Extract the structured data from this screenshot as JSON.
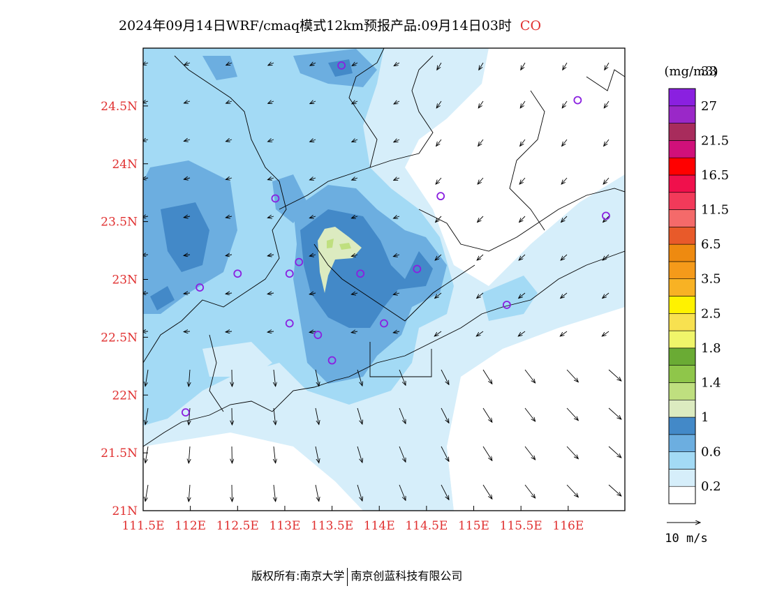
{
  "title": {
    "text": "2024年09月14日WRF/cmaq模式12km预报产品:09月14日03时",
    "species": "CO",
    "species_color": "#e03030"
  },
  "map": {
    "lon_labels": [
      "111.5E",
      "112E",
      "112.5E",
      "113E",
      "113.5E",
      "114E",
      "114.5E",
      "115E",
      "115.5E",
      "116E"
    ],
    "lat_labels": [
      "21N",
      "21.5N",
      "22N",
      "22.5N",
      "23N",
      "23.5N",
      "24N",
      "24.5N"
    ],
    "label_color": "#e03030",
    "lon_range": [
      111.5,
      116.6
    ],
    "lat_range": [
      21.0,
      25.0
    ]
  },
  "legend": {
    "unit": "(mg/m3)",
    "colors": [
      "#ffffff",
      "#d6eefa",
      "#a3daf5",
      "#6caee0",
      "#4389c8",
      "#dcebc0",
      "#bfdf7f",
      "#8fc64a",
      "#6aab34",
      "#f0f56a",
      "#f8e150",
      "#fff200",
      "#f8b224",
      "#f59a1a",
      "#ee8a10",
      "#e85a2a",
      "#f46a6a",
      "#f23a5a",
      "#f0104c",
      "#ff0000",
      "#d0107a",
      "#a82c5c",
      "#9a28c8",
      "#8a20e0"
    ],
    "labels": [
      "0.2",
      "0.6",
      "1",
      "1.4",
      "1.8",
      "2.5",
      "3.5",
      "6.5",
      "11.5",
      "16.5",
      "21.5",
      "27",
      "33"
    ],
    "wind_ref": "10 m/s"
  },
  "footer": {
    "left": "版权所有:南京大学",
    "right": "南京创蓝科技有限公司"
  },
  "sites": [
    {
      "lon": 113.6,
      "lat": 24.85
    },
    {
      "lon": 116.1,
      "lat": 24.55
    },
    {
      "lon": 112.9,
      "lat": 23.7
    },
    {
      "lon": 114.65,
      "lat": 23.72
    },
    {
      "lon": 116.4,
      "lat": 23.55
    },
    {
      "lon": 113.15,
      "lat": 23.15
    },
    {
      "lon": 112.5,
      "lat": 23.05
    },
    {
      "lon": 113.05,
      "lat": 23.05
    },
    {
      "lon": 113.8,
      "lat": 23.05
    },
    {
      "lon": 114.4,
      "lat": 23.09
    },
    {
      "lon": 112.1,
      "lat": 22.93
    },
    {
      "lon": 115.35,
      "lat": 22.78
    },
    {
      "lon": 113.05,
      "lat": 22.62
    },
    {
      "lon": 114.05,
      "lat": 22.62
    },
    {
      "lon": 113.35,
      "lat": 22.52
    },
    {
      "lon": 113.5,
      "lat": 22.3
    },
    {
      "lon": 111.95,
      "lat": 21.85
    }
  ]
}
